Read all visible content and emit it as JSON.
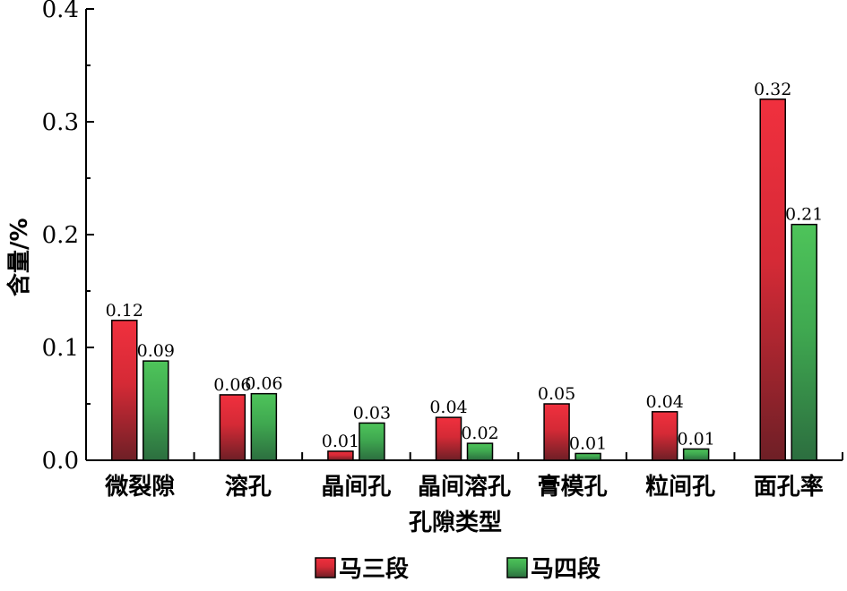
{
  "chart_data": {
    "type": "bar",
    "categories": [
      "微裂隙",
      "溶孔",
      "晶间孔",
      "晶间溶孔",
      "膏模孔",
      "粒间孔",
      "面孔率"
    ],
    "series": [
      {
        "name": "马三段",
        "values": [
          0.124,
          0.058,
          0.008,
          0.038,
          0.05,
          0.043,
          0.32
        ],
        "labels": [
          "0.12",
          "0.06",
          "0.01",
          "0.04",
          "0.05",
          "0.04",
          "0.32"
        ],
        "color_top": "#f0303e",
        "color_bottom": "#6e1f26"
      },
      {
        "name": "马四段",
        "values": [
          0.088,
          0.059,
          0.033,
          0.015,
          0.006,
          0.01,
          0.209
        ],
        "labels": [
          "0.09",
          "0.06",
          "0.03",
          "0.02",
          "0.01",
          "0.01",
          "0.21"
        ],
        "color_top": "#4ec45a",
        "color_bottom": "#2c6e3f"
      }
    ],
    "xlabel": "孔隙类型",
    "ylabel": "含量/%",
    "ylim": [
      0,
      0.4
    ],
    "yticks": [
      "0.0",
      "0.1",
      "0.2",
      "0.3",
      "0.4"
    ],
    "ytick_values": [
      0,
      0.1,
      0.2,
      0.3,
      0.4
    ],
    "grid": false,
    "legend_position": "bottom-center"
  }
}
